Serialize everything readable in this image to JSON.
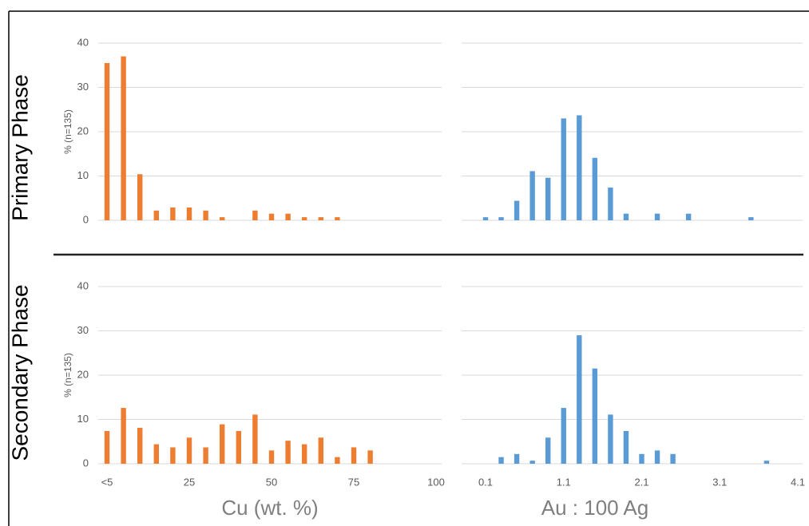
{
  "row_labels": [
    "Primary Phase",
    "Secondary Phase"
  ],
  "chart_data": [
    {
      "type": "bar",
      "ylabel": "% (n=135)",
      "ylim": [
        0,
        40
      ],
      "yticks": [
        0,
        10,
        20,
        30,
        40
      ],
      "grid": true,
      "color": "#ed7d31",
      "values": [
        35.5,
        37,
        10.4,
        2.2,
        2.9,
        2.9,
        2.2,
        0.7,
        0,
        2.2,
        1.5,
        1.5,
        0.7,
        0.7,
        0.7,
        0,
        0,
        0,
        0,
        0,
        0
      ]
    },
    {
      "type": "bar",
      "ylim": [
        0,
        40
      ],
      "yticks": [
        0,
        10,
        20,
        30,
        40
      ],
      "ytick_labels": false,
      "grid": true,
      "color": "#5b9bd5",
      "values": [
        0.7,
        0.7,
        4.4,
        11.1,
        9.6,
        23,
        23.7,
        14.1,
        7.4,
        1.5,
        0,
        1.5,
        0,
        1.5,
        0,
        0,
        0,
        0.7,
        0,
        0,
        0
      ]
    },
    {
      "type": "bar",
      "ylabel": "% (n=135)",
      "ylim": [
        0,
        40
      ],
      "yticks": [
        0,
        10,
        20,
        30,
        40
      ],
      "grid": true,
      "color": "#ed7d31",
      "xlabel": "Cu (wt. %)",
      "categories": [
        "<5",
        null,
        null,
        null,
        null,
        "25",
        null,
        null,
        null,
        null,
        "50",
        null,
        null,
        null,
        null,
        "75",
        null,
        null,
        null,
        null,
        "100"
      ],
      "values": [
        7.4,
        12.6,
        8.1,
        4.4,
        3.7,
        5.9,
        3.7,
        8.9,
        7.4,
        11.1,
        3.0,
        5.2,
        4.4,
        5.9,
        1.5,
        3.7,
        3.0,
        0,
        0,
        0,
        0
      ]
    },
    {
      "type": "bar",
      "ylim": [
        0,
        40
      ],
      "yticks": [
        0,
        10,
        20,
        30,
        40
      ],
      "ytick_labels": false,
      "grid": true,
      "color": "#5b9bd5",
      "xlabel": "Au : 100 Ag",
      "categories": [
        "0.1",
        null,
        null,
        null,
        null,
        "1.1",
        null,
        null,
        null,
        null,
        "2.1",
        null,
        null,
        null,
        null,
        "3.1",
        null,
        null,
        null,
        null,
        "4.1"
      ],
      "values": [
        0,
        1.5,
        2.2,
        0.7,
        5.9,
        12.6,
        29,
        21.5,
        11.1,
        7.4,
        2.2,
        3.0,
        2.2,
        0,
        0,
        0,
        0,
        0,
        0.7,
        0,
        0
      ]
    }
  ]
}
